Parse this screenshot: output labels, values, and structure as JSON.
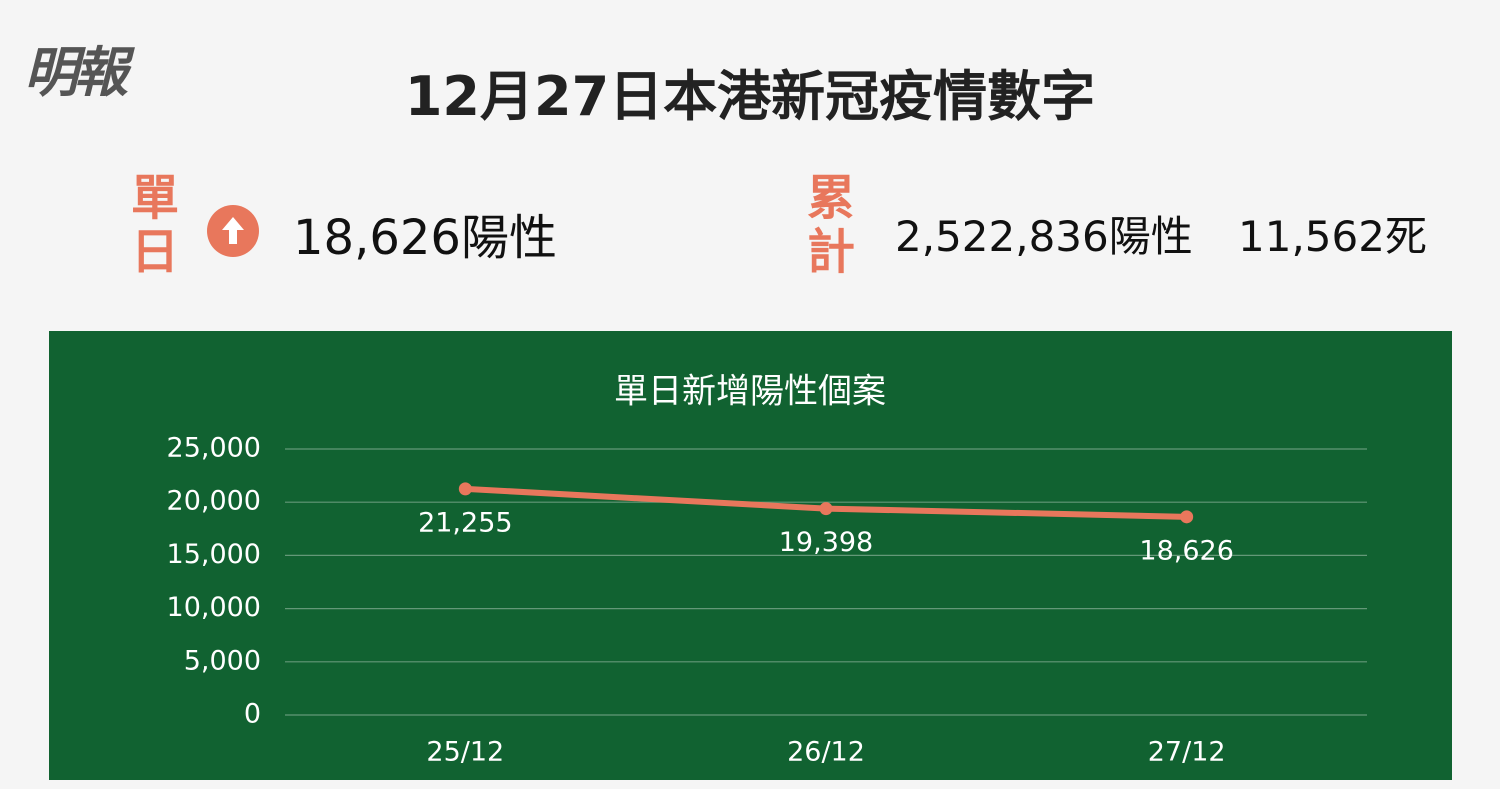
{
  "logo": "明報",
  "title": "12月27日本港新冠疫情數字",
  "daily": {
    "label": "單日",
    "positive": "18,626陽性"
  },
  "cumulative": {
    "label": "累計",
    "positive": "2,522,836陽性",
    "deaths": "11,562死"
  },
  "chart_data": {
    "type": "line",
    "title": "單日新增陽性個案",
    "categories": [
      "25/12",
      "26/12",
      "27/12"
    ],
    "values": [
      21255,
      19398,
      18626
    ],
    "value_labels": [
      "21,255",
      "19,398",
      "18,626"
    ],
    "color": "#e8775c",
    "ylim": [
      0,
      25000
    ],
    "yticks": [
      0,
      {
        "value": 5000,
        "label": "5,000"
      },
      {
        "value": 10000,
        "label": "10,000"
      },
      {
        "value": 15000,
        "label": "15,000"
      },
      {
        "value": 20000,
        "label": "20,000"
      },
      {
        "value": 25000,
        "label": "25,000"
      }
    ],
    "grid": true
  }
}
